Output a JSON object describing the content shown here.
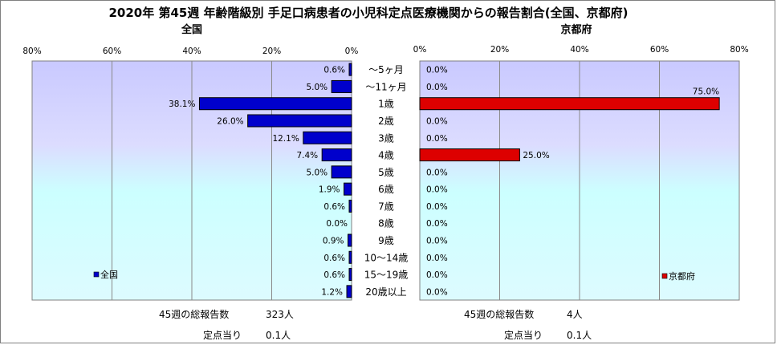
{
  "title": "2020年 第45週 年齢階級別 手足口病患者の小児科定点医療機関からの報告割合(全国、京都府)",
  "colors": {
    "national": "#0000cc",
    "kyoto": "#dd0000"
  },
  "chart_data": {
    "type": "bar",
    "orientation": "horizontal",
    "categories": [
      "～5ヶ月",
      "～11ヶ月",
      "1歳",
      "2歳",
      "3歳",
      "4歳",
      "5歳",
      "6歳",
      "7歳",
      "8歳",
      "9歳",
      "10～14歳",
      "15～19歳",
      "20歳以上"
    ],
    "xlim": [
      0,
      80
    ],
    "xticks": [
      "0%",
      "20%",
      "40%",
      "60%",
      "80%"
    ],
    "series": [
      {
        "name": "全国",
        "panel_title": "全国",
        "values": [
          0.6,
          5.0,
          38.1,
          26.0,
          12.1,
          7.4,
          5.0,
          1.9,
          0.6,
          0.0,
          0.9,
          0.6,
          0.6,
          1.2
        ],
        "labels": [
          "0.6%",
          "5.0%",
          "38.1%",
          "26.0%",
          "12.1%",
          "7.4%",
          "5.0%",
          "1.9%",
          "0.6%",
          "0.0%",
          "0.9%",
          "0.6%",
          "0.6%",
          "1.2%"
        ]
      },
      {
        "name": "京都府",
        "panel_title": "京都府",
        "values": [
          0,
          0,
          75.0,
          0,
          0,
          25.0,
          0,
          0,
          0,
          0,
          0,
          0,
          0,
          0
        ],
        "labels": [
          "0.0%",
          "0.0%",
          "75.0%",
          "0.0%",
          "0.0%",
          "25.0%",
          "0.0%",
          "0.0%",
          "0.0%",
          "0.0%",
          "0.0%",
          "0.0%",
          "0.0%",
          "0.0%"
        ]
      }
    ]
  },
  "footer": {
    "national": {
      "total_label": "45週の総報告数",
      "total_value": "323人",
      "per_label": "定点当り",
      "per_value": "0.1人"
    },
    "kyoto": {
      "total_label": "45週の総報告数",
      "total_value": "4人",
      "per_label": "定点当り",
      "per_value": "0.1人"
    }
  }
}
